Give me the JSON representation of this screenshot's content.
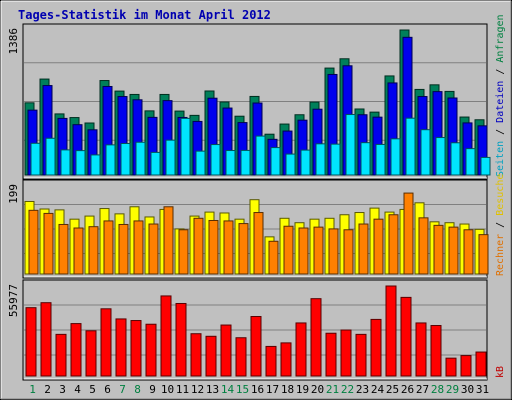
{
  "chart_data": {
    "type": "bar",
    "title": "Tages-Statistik im Monat April 2012",
    "categories": [
      "1",
      "2",
      "3",
      "4",
      "5",
      "6",
      "7",
      "8",
      "9",
      "10",
      "11",
      "12",
      "13",
      "14",
      "15",
      "16",
      "17",
      "18",
      "19",
      "20",
      "21",
      "22",
      "23",
      "24",
      "25",
      "26",
      "27",
      "28",
      "29",
      "30",
      "31"
    ],
    "highlighted_days": [
      "1",
      "7",
      "8",
      "14",
      "15",
      "21",
      "22",
      "28",
      "29"
    ],
    "grid": true,
    "panels": [
      {
        "name": "top",
        "ymax_label": "1386",
        "ylim": [
          0,
          1386
        ],
        "right_labels": [
          {
            "text": "Anfragen",
            "color": "#008040"
          },
          {
            "text": " / ",
            "color": "#000000"
          },
          {
            "text": "Dateien",
            "color": "#0000c0"
          },
          {
            "text": " / ",
            "color": "#000000"
          },
          {
            "text": "Seiten",
            "color": "#00a0c0"
          }
        ],
        "series": [
          {
            "name": "Anfragen",
            "color": "#00805a",
            "values": [
              690,
              917,
              584,
              549,
              497,
              903,
              802,
              770,
              613,
              770,
              611,
              570,
              803,
              698,
              562,
              751,
              390,
              487,
              576,
              697,
              1022,
              1111,
              631,
              601,
              947,
              1386,
              818,
              862,
              799,
              554,
              528
            ]
          },
          {
            "name": "Dateien",
            "color": "#0000ee",
            "values": [
              620,
              855,
              541,
              481,
              432,
              846,
              750,
              719,
              551,
              711,
              550,
              512,
              734,
              640,
              501,
              688,
              341,
              420,
              524,
              629,
              961,
              1044,
              576,
              553,
              880,
              1316,
              750,
              797,
              736,
              498,
              470
            ]
          },
          {
            "name": "Seiten",
            "color": "#00e6ff",
            "values": [
              303,
              351,
              240,
              233,
              192,
              288,
              301,
              313,
              216,
              333,
              541,
              228,
              291,
              234,
              235,
              372,
              262,
              200,
              238,
              298,
              295,
              578,
              309,
              292,
              346,
              543,
              433,
              358,
              308,
              252,
              168
            ]
          }
        ]
      },
      {
        "name": "middle",
        "ymax_label": "199",
        "ylim": [
          0,
          199
        ],
        "right_labels": [
          {
            "text": "Besuche",
            "color": "#e0c000"
          },
          {
            "text": " / ",
            "color": "#000000"
          },
          {
            "text": "Rechner",
            "color": "#e07000"
          }
        ],
        "series": [
          {
            "name": "Besuche",
            "color": "#ffff00",
            "values": [
              164,
              147,
              145,
              124,
              131,
              148,
              136,
              152,
              129,
              146,
              102,
              131,
              140,
              138,
              124,
              168,
              84,
              126,
              116,
              124,
              126,
              134,
              139,
              149,
              140,
              146,
              161,
              118,
              116,
              113,
              101
            ]
          },
          {
            "name": "Rechner",
            "color": "#ff8000",
            "values": [
              144,
              137,
              112,
              104,
              107,
              120,
              112,
              120,
              113,
              152,
              100,
              126,
              121,
              120,
              114,
              139,
              74,
              108,
              104,
              106,
              102,
              100,
              113,
              124,
              134,
              183,
              127,
              110,
              106,
              100,
              89
            ]
          }
        ]
      },
      {
        "name": "bottom",
        "ymax_label": "55977",
        "ylim": [
          0,
          55977
        ],
        "right_labels": [
          {
            "text": "kB",
            "color": "#c00000"
          }
        ],
        "series": [
          {
            "name": "kB",
            "color": "#ff0000",
            "values": [
              42500,
              45600,
              25900,
              32600,
              28100,
              41800,
              35500,
              34500,
              32200,
              49800,
              45100,
              26300,
              24700,
              31700,
              23800,
              37000,
              18400,
              20600,
              33000,
              48100,
              26600,
              28600,
              25900,
              35200,
              55977,
              48900,
              33000,
              31400,
              11100,
              12700,
              14900
            ]
          }
        ]
      }
    ]
  }
}
